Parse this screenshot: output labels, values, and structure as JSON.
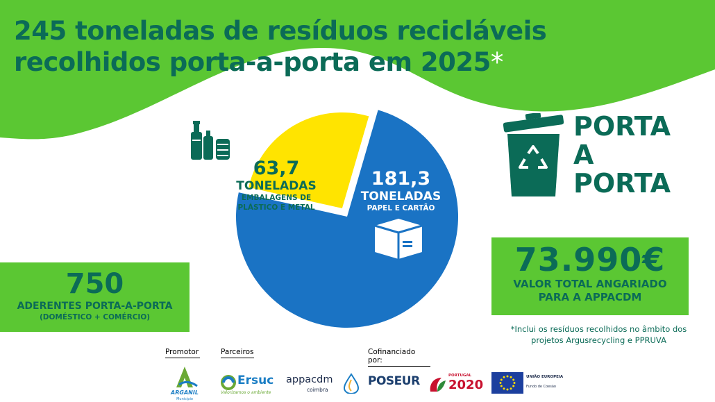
{
  "title": {
    "line1": "245 toneladas de resíduos recicláveis",
    "line2": "recolhidos porta-a-porta em 2025",
    "asterisk": "*"
  },
  "chart_data": {
    "type": "pie",
    "unit": "TONELADAS",
    "slices": [
      {
        "value": 181.3,
        "value_label": "181,3",
        "unit": "TONELADAS",
        "label": "PAPEL E CARTÃO",
        "color": "#1a73c4",
        "icon": "box-icon"
      },
      {
        "value": 63.7,
        "value_label": "63,7",
        "unit": "TONELADAS",
        "label_line1": "EMBALAGENS DE",
        "label_line2": "PLÁSTICO E METAL",
        "color": "#ffe400",
        "icon": "bottles-cans-icon"
      }
    ]
  },
  "porta": {
    "line1": "PORTA",
    "line2": "A",
    "line3": "PORTA",
    "icon": "recycling-bin-icon"
  },
  "adherents": {
    "value": "750",
    "label": "ADERENTES PORTA-A-PORTA",
    "sublabel": "(DOMÉSTICO + COMÉRCIO)"
  },
  "raised": {
    "value": "73.990€",
    "label_line1": "VALOR TOTAL ANGARIADO",
    "label_line2": "PARA A APPACDM"
  },
  "footnote": {
    "line1": "*Inclui os resíduos recolhidos no âmbito dos",
    "line2": "projetos Argusrecycling e PPRUVA"
  },
  "footer": {
    "promotor_label": "Promotor",
    "parceiros_label": "Parceiros",
    "cofinanciado_label": "Cofinanciado por:",
    "logos": {
      "arganil": {
        "name": "ARGANIL",
        "sub": "Município"
      },
      "ersuc": {
        "name": "Ersuc",
        "tagline": "Valorizamos o ambiente"
      },
      "appacdm": {
        "name": "appacdm",
        "sub": "coimbra"
      },
      "poseur": {
        "name": "POSEUR"
      },
      "portugal2020": {
        "small": "PORTUGAL",
        "year": "2020"
      },
      "eu": {
        "line1": "UNIÃO EUROPEIA",
        "line2": "Fundo de Coesão"
      }
    }
  },
  "colors": {
    "green": "#5bc733",
    "dark_green": "#0b6b57",
    "blue": "#1a73c4",
    "yellow": "#ffe400"
  }
}
